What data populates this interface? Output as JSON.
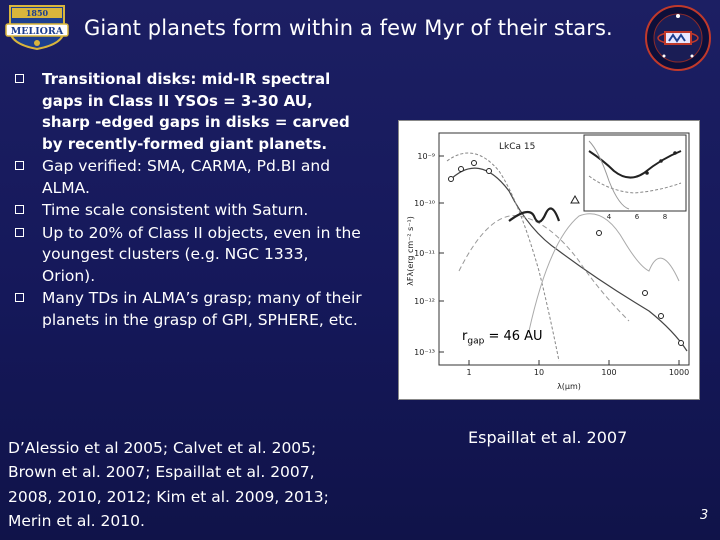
{
  "header": {
    "title": "Giant planets form within a few Myr of their stars.",
    "left_logo_text": "MELIORA",
    "left_logo_year": "1850"
  },
  "bullets": [
    {
      "text": "Transitional disks: mid-IR spectral gaps in Class II YSOs = 3-30 AU, sharp -edged gaps in disks = carved by recently-formed giant planets.",
      "bold": true
    },
    {
      "text": "Gap verified: SMA, CARMA, Pd.BI and ALMA.",
      "bold": false
    },
    {
      "text": "Time scale consistent with Saturn.",
      "bold": false
    },
    {
      "text": "Up to 20% of Class II objects, even in the youngest clusters (e.g. NGC 1333, Orion).",
      "bold": false
    },
    {
      "text": "Many TDs in ALMA’s grasp; many of their planets in the grasp of GPI, SPHERE, etc.",
      "bold": false
    }
  ],
  "references": "D’Alessio et al 2005; Calvet et al. 2005; Brown et al. 2007; Espaillat et al. 2007, 2008, 2010, 2012; Kim et al. 2009, 2013; Merin et al. 2010.",
  "figure": {
    "object_label": "LkCa 15",
    "ylabel": "λFλ(erg cm⁻² s⁻¹)",
    "xlabel": "λ(μm)",
    "yticks": [
      "10⁻⁹",
      "10⁻¹⁰",
      "10⁻¹¹",
      "10⁻¹²",
      "10⁻¹³"
    ],
    "xticks": [
      "1",
      "10",
      "100",
      "1000"
    ],
    "inset_xticks": [
      "4",
      "6",
      "8"
    ],
    "gap_label_r": "r",
    "gap_label_sub": "gap",
    "gap_label_value": " = 46 AU"
  },
  "caption": "Espaillat et al. 2007",
  "slide_number": "3",
  "colors": {
    "background": "#1c1f63",
    "text": "#ffffff",
    "logo_gold": "#d9b53c",
    "logo_blue": "#1d3f8f"
  }
}
